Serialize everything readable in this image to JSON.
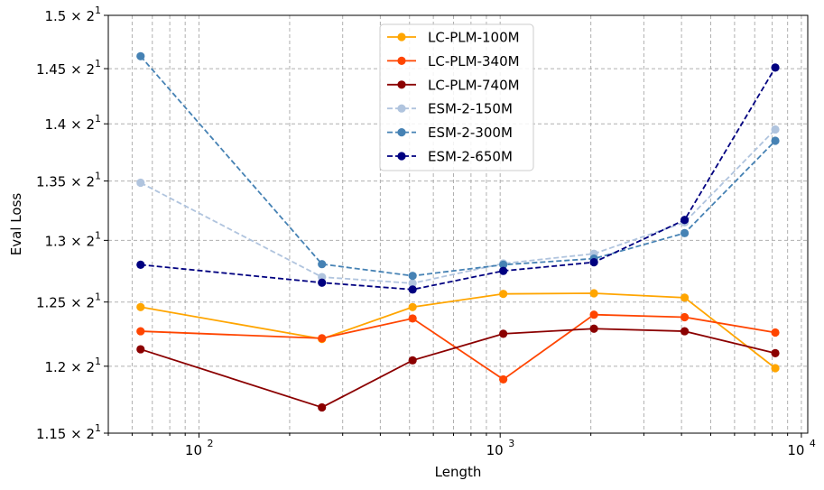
{
  "chart_data": {
    "type": "line",
    "title": "",
    "xlabel": "Length",
    "ylabel": "Eval Loss",
    "xscale": "log",
    "yscale": "log",
    "xlim": [
      50,
      10500
    ],
    "ylim": [
      2.3,
      3.0
    ],
    "grid": true,
    "legend_position": "top-center",
    "x": [
      64,
      256,
      512,
      1024,
      2048,
      4096,
      8192
    ],
    "xticks": [
      {
        "value": 100,
        "base": "10",
        "exp": "2"
      },
      {
        "value": 1000,
        "base": "10",
        "exp": "3"
      },
      {
        "value": 10000,
        "base": "10",
        "exp": "4"
      }
    ],
    "yticks": [
      {
        "value": 2.3,
        "label": "1.15 × 2",
        "exp": "1"
      },
      {
        "value": 2.4,
        "label": "1.2 × 2",
        "exp": "1"
      },
      {
        "value": 2.5,
        "label": "1.25 × 2",
        "exp": "1"
      },
      {
        "value": 2.6,
        "label": "1.3 × 2",
        "exp": "1"
      },
      {
        "value": 2.7,
        "label": "1.35 × 2",
        "exp": "1"
      },
      {
        "value": 2.8,
        "label": "1.4 × 2",
        "exp": "1"
      },
      {
        "value": 2.9,
        "label": "1.45 × 2",
        "exp": "1"
      },
      {
        "value": 3.0,
        "label": "1.5 × 2",
        "exp": "1"
      }
    ],
    "series": [
      {
        "name": "LC-PLM-100M",
        "color": "#ffa500",
        "dashed": false,
        "values": [
          2.492,
          2.442,
          2.492,
          2.513,
          2.514,
          2.507,
          2.397
        ]
      },
      {
        "name": "LC-PLM-340M",
        "color": "#ff4500",
        "dashed": false,
        "values": [
          2.454,
          2.443,
          2.474,
          2.38,
          2.48,
          2.476,
          2.452
        ]
      },
      {
        "name": "LC-PLM-740M",
        "color": "#8b0000",
        "dashed": false,
        "values": [
          2.426,
          2.338,
          2.409,
          2.45,
          2.458,
          2.454,
          2.42
        ]
      },
      {
        "name": "ESM-2-150M",
        "color": "#b0c4de",
        "dashed": true,
        "values": [
          2.697,
          2.54,
          2.53,
          2.562,
          2.578,
          2.63,
          2.79
        ]
      },
      {
        "name": "ESM-2-300M",
        "color": "#4682b4",
        "dashed": true,
        "values": [
          2.923,
          2.561,
          2.542,
          2.56,
          2.57,
          2.612,
          2.77
        ]
      },
      {
        "name": "ESM-2-650M",
        "color": "#000080",
        "dashed": true,
        "values": [
          2.56,
          2.531,
          2.52,
          2.55,
          2.564,
          2.634,
          2.902
        ]
      }
    ]
  }
}
